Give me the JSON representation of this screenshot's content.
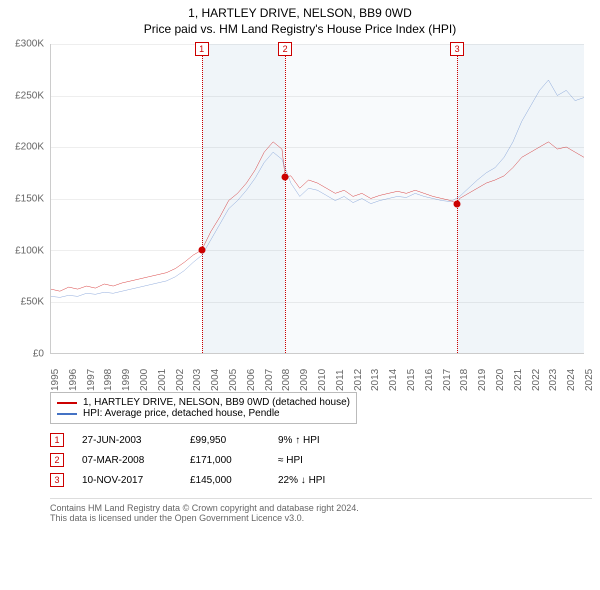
{
  "title": "1, HARTLEY DRIVE, NELSON, BB9 0WD",
  "subtitle": "Price paid vs. HM Land Registry's House Price Index (HPI)",
  "chart": {
    "type": "line",
    "ylim": [
      0,
      300000
    ],
    "ytick_step": 50000,
    "ytick_labels": [
      "£0",
      "£50K",
      "£100K",
      "£150K",
      "£200K",
      "£250K",
      "£300K"
    ],
    "x_range": [
      1995,
      2025
    ],
    "x_ticks": [
      1995,
      1996,
      1997,
      1998,
      1999,
      2000,
      2001,
      2002,
      2003,
      2004,
      2005,
      2006,
      2007,
      2008,
      2009,
      2010,
      2011,
      2012,
      2013,
      2014,
      2015,
      2016,
      2017,
      2018,
      2019,
      2020,
      2021,
      2022,
      2023,
      2024,
      2025
    ],
    "background_color": "#ffffff",
    "grid_color": "#eeeeee",
    "axis_color": "#cccccc",
    "shaded_bands": [
      {
        "from": 2003.48,
        "to": 2008.18,
        "color": "rgba(70,130,180,0.08)"
      },
      {
        "from": 2008.18,
        "to": 2017.86,
        "color": "rgba(70,130,180,0.04)"
      },
      {
        "from": 2017.86,
        "to": 2025,
        "color": "rgba(70,130,180,0.08)"
      }
    ],
    "series": [
      {
        "name": "property",
        "label": "1, HARTLEY DRIVE, NELSON, BB9 0WD (detached house)",
        "color": "#cc0000",
        "line_width": 1.5,
        "points": [
          [
            1995,
            62000
          ],
          [
            1995.5,
            60000
          ],
          [
            1996,
            64000
          ],
          [
            1996.5,
            62000
          ],
          [
            1997,
            65000
          ],
          [
            1997.5,
            63000
          ],
          [
            1998,
            67000
          ],
          [
            1998.5,
            65000
          ],
          [
            1999,
            68000
          ],
          [
            1999.5,
            70000
          ],
          [
            2000,
            72000
          ],
          [
            2000.5,
            74000
          ],
          [
            2001,
            76000
          ],
          [
            2001.5,
            78000
          ],
          [
            2002,
            82000
          ],
          [
            2002.5,
            88000
          ],
          [
            2003,
            95000
          ],
          [
            2003.48,
            99950
          ],
          [
            2004,
            118000
          ],
          [
            2004.5,
            132000
          ],
          [
            2005,
            148000
          ],
          [
            2005.5,
            155000
          ],
          [
            2006,
            165000
          ],
          [
            2006.5,
            178000
          ],
          [
            2007,
            195000
          ],
          [
            2007.5,
            205000
          ],
          [
            2008,
            198000
          ],
          [
            2008.18,
            171000
          ],
          [
            2008.5,
            172000
          ],
          [
            2009,
            160000
          ],
          [
            2009.5,
            168000
          ],
          [
            2010,
            165000
          ],
          [
            2010.5,
            160000
          ],
          [
            2011,
            155000
          ],
          [
            2011.5,
            158000
          ],
          [
            2012,
            152000
          ],
          [
            2012.5,
            155000
          ],
          [
            2013,
            150000
          ],
          [
            2013.5,
            153000
          ],
          [
            2014,
            155000
          ],
          [
            2014.5,
            157000
          ],
          [
            2015,
            155000
          ],
          [
            2015.5,
            158000
          ],
          [
            2016,
            155000
          ],
          [
            2016.5,
            152000
          ],
          [
            2017,
            150000
          ],
          [
            2017.5,
            148000
          ],
          [
            2017.86,
            145000
          ],
          [
            2018,
            150000
          ],
          [
            2018.5,
            155000
          ],
          [
            2019,
            160000
          ],
          [
            2019.5,
            165000
          ],
          [
            2020,
            168000
          ],
          [
            2020.5,
            172000
          ],
          [
            2021,
            180000
          ],
          [
            2021.5,
            190000
          ],
          [
            2022,
            195000
          ],
          [
            2022.5,
            200000
          ],
          [
            2023,
            205000
          ],
          [
            2023.5,
            198000
          ],
          [
            2024,
            200000
          ],
          [
            2024.5,
            195000
          ],
          [
            2025,
            190000
          ]
        ]
      },
      {
        "name": "hpi",
        "label": "HPI: Average price, detached house, Pendle",
        "color": "#4472c4",
        "line_width": 1.2,
        "points": [
          [
            1995,
            55000
          ],
          [
            1995.5,
            54000
          ],
          [
            1996,
            56000
          ],
          [
            1996.5,
            55000
          ],
          [
            1997,
            58000
          ],
          [
            1997.5,
            57000
          ],
          [
            1998,
            59000
          ],
          [
            1998.5,
            58000
          ],
          [
            1999,
            60000
          ],
          [
            1999.5,
            62000
          ],
          [
            2000,
            64000
          ],
          [
            2000.5,
            66000
          ],
          [
            2001,
            68000
          ],
          [
            2001.5,
            70000
          ],
          [
            2002,
            74000
          ],
          [
            2002.5,
            80000
          ],
          [
            2003,
            88000
          ],
          [
            2003.5,
            95000
          ],
          [
            2004,
            110000
          ],
          [
            2004.5,
            125000
          ],
          [
            2005,
            140000
          ],
          [
            2005.5,
            148000
          ],
          [
            2006,
            158000
          ],
          [
            2006.5,
            170000
          ],
          [
            2007,
            185000
          ],
          [
            2007.5,
            195000
          ],
          [
            2008,
            188000
          ],
          [
            2008.5,
            165000
          ],
          [
            2009,
            152000
          ],
          [
            2009.5,
            160000
          ],
          [
            2010,
            158000
          ],
          [
            2010.5,
            153000
          ],
          [
            2011,
            148000
          ],
          [
            2011.5,
            152000
          ],
          [
            2012,
            146000
          ],
          [
            2012.5,
            150000
          ],
          [
            2013,
            145000
          ],
          [
            2013.5,
            148000
          ],
          [
            2014,
            150000
          ],
          [
            2014.5,
            152000
          ],
          [
            2015,
            151000
          ],
          [
            2015.5,
            155000
          ],
          [
            2016,
            152000
          ],
          [
            2016.5,
            150000
          ],
          [
            2017,
            148000
          ],
          [
            2017.5,
            147000
          ],
          [
            2018,
            152000
          ],
          [
            2018.5,
            160000
          ],
          [
            2019,
            168000
          ],
          [
            2019.5,
            175000
          ],
          [
            2020,
            180000
          ],
          [
            2020.5,
            190000
          ],
          [
            2021,
            205000
          ],
          [
            2021.5,
            225000
          ],
          [
            2022,
            240000
          ],
          [
            2022.5,
            255000
          ],
          [
            2023,
            265000
          ],
          [
            2023.5,
            250000
          ],
          [
            2024,
            255000
          ],
          [
            2024.5,
            245000
          ],
          [
            2025,
            248000
          ]
        ]
      }
    ],
    "markers": [
      {
        "n": 1,
        "x": 2003.48,
        "y": 99950,
        "color": "#cc0000"
      },
      {
        "n": 2,
        "x": 2008.18,
        "y": 171000,
        "color": "#cc0000"
      },
      {
        "n": 3,
        "x": 2017.86,
        "y": 145000,
        "color": "#cc0000"
      }
    ]
  },
  "legend": {
    "items": [
      {
        "color": "#cc0000",
        "label": "1, HARTLEY DRIVE, NELSON, BB9 0WD (detached house)"
      },
      {
        "color": "#4472c4",
        "label": "HPI: Average price, detached house, Pendle"
      }
    ]
  },
  "transactions": [
    {
      "n": 1,
      "color": "#cc0000",
      "date": "27-JUN-2003",
      "price": "£99,950",
      "pct": "9% ↑ HPI"
    },
    {
      "n": 2,
      "color": "#cc0000",
      "date": "07-MAR-2008",
      "price": "£171,000",
      "pct": "≈ HPI"
    },
    {
      "n": 3,
      "color": "#cc0000",
      "date": "10-NOV-2017",
      "price": "£145,000",
      "pct": "22% ↓ HPI"
    }
  ],
  "footer": {
    "line1": "Contains HM Land Registry data © Crown copyright and database right 2024.",
    "line2": "This data is licensed under the Open Government Licence v3.0."
  }
}
